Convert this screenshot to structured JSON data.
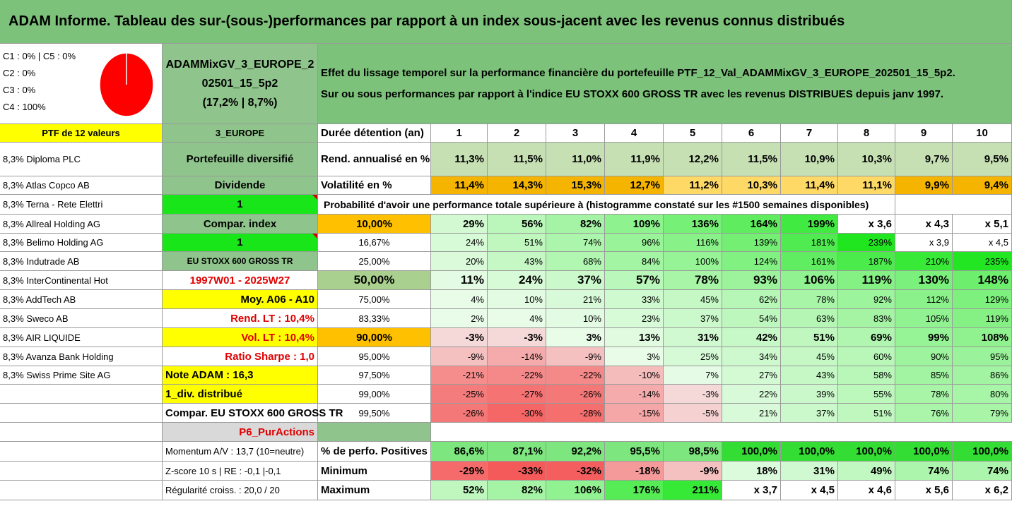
{
  "header": {
    "title": "ADAM Informe. Tableau des sur-(sous-)performances par rapport à un index sous-jacent avec les revenus connus distribués"
  },
  "classes": {
    "lines": [
      "C1 : 0% | C5 : 0%",
      "C2 : 0%",
      "C3 : 0%",
      "C4 : 100%"
    ],
    "pie_values": [
      0,
      0,
      0,
      100,
      0
    ],
    "pie_color": "#ff0000"
  },
  "portfolio_name": {
    "line1": "ADAMMixGV_3_EUROPE_2",
    "line2": "02501_15_5p2",
    "line3": "(17,2% | 8,7%)"
  },
  "description": {
    "line1": "Effet du lissage temporel sur la performance financière du portefeuille PTF_12_Val_ADAMMixGV_3_EUROPE_202501_15_5p2.",
    "line2": "Sur ou sous performances par rapport à l'indice EU STOXX 600 GROSS TR avec les revenus DISTRIBUES depuis janv 1997."
  },
  "holdings": {
    "header": "PTF de 12 valeurs",
    "items": [
      "8,3% Diploma PLC",
      "8,3% Atlas Copco AB",
      "8,3% Terna - Rete Elettri",
      "8,3% Allreal Holding AG",
      "8,3% Belimo Holding AG",
      "8,3% Indutrade AB",
      "8,3% InterContinental Hot",
      "8,3% AddTech AB",
      "8,3% Sweco AB",
      "8,3% AIR LIQUIDE",
      "8,3% Avanza Bank Holding",
      "8,3% Swiss Prime Site AG"
    ]
  },
  "info": {
    "zone": "3_EUROPE",
    "type": "Portefeuille diversifié",
    "dividend_label": "Dividende",
    "dividend_value": "1",
    "compar_label": "Compar. index",
    "compar_value": "1",
    "index_name": "EU STOXX 600 GROSS TR",
    "period": "1997W01 - 2025W27",
    "avg": "Moy. A06 - A10",
    "rend_lt": "Rend. LT : 10,4%",
    "vol_lt": "Vol. LT : 10,4%",
    "sharpe": "Ratio Sharpe : 1,0",
    "note": "Note ADAM : 16,3",
    "div_distrib": "1_div. distribué",
    "compar_full": "Compar. EU STOXX 600 GROSS TR",
    "purpose": "P6_PurActions",
    "momentum": "Momentum A/V : 13,7 (10=neutre)",
    "zscore": "Z-score 10 s | RE : -0,1 |-0,1",
    "regularity": "Régularité croiss. : 20,0 / 20"
  },
  "table": {
    "duration_label": "Durée détention (an)",
    "years": [
      "1",
      "2",
      "3",
      "4",
      "5",
      "6",
      "7",
      "8",
      "9",
      "10"
    ],
    "rend_label": "Rend. annualisé en %",
    "rend": [
      "11,3%",
      "11,5%",
      "11,0%",
      "11,9%",
      "12,2%",
      "11,5%",
      "10,9%",
      "10,3%",
      "9,7%",
      "9,5%"
    ],
    "vol_label": "Volatilité en %",
    "vol": [
      "11,4%",
      "14,3%",
      "15,3%",
      "12,7%",
      "11,2%",
      "10,3%",
      "11,4%",
      "11,1%",
      "9,9%",
      "9,4%"
    ],
    "prob_title": "Probabilité d'avoir une performance totale supérieure à (histogramme constaté sur les #1500 semaines disponibles)",
    "prob_rows": [
      {
        "p": "10,00%",
        "v": [
          "29%",
          "56%",
          "82%",
          "109%",
          "136%",
          "164%",
          "199%",
          "x 3,6",
          "x 4,3",
          "x 5,1"
        ]
      },
      {
        "p": "16,67%",
        "v": [
          "24%",
          "51%",
          "74%",
          "96%",
          "116%",
          "139%",
          "181%",
          "239%",
          "x 3,9",
          "x 4,5"
        ]
      },
      {
        "p": "25,00%",
        "v": [
          "20%",
          "43%",
          "68%",
          "84%",
          "100%",
          "124%",
          "161%",
          "187%",
          "210%",
          "235%"
        ]
      },
      {
        "p": "50,00%",
        "v": [
          "11%",
          "24%",
          "37%",
          "57%",
          "78%",
          "93%",
          "106%",
          "119%",
          "130%",
          "148%"
        ]
      },
      {
        "p": "75,00%",
        "v": [
          "4%",
          "10%",
          "21%",
          "33%",
          "45%",
          "62%",
          "78%",
          "92%",
          "112%",
          "129%"
        ]
      },
      {
        "p": "83,33%",
        "v": [
          "2%",
          "4%",
          "10%",
          "23%",
          "37%",
          "54%",
          "63%",
          "83%",
          "105%",
          "119%"
        ]
      },
      {
        "p": "90,00%",
        "v": [
          "-3%",
          "-3%",
          "3%",
          "13%",
          "31%",
          "42%",
          "51%",
          "69%",
          "99%",
          "108%"
        ]
      },
      {
        "p": "95,00%",
        "v": [
          "-9%",
          "-14%",
          "-9%",
          "3%",
          "25%",
          "34%",
          "45%",
          "60%",
          "90%",
          "95%"
        ]
      },
      {
        "p": "97,50%",
        "v": [
          "-21%",
          "-22%",
          "-22%",
          "-10%",
          "7%",
          "27%",
          "43%",
          "58%",
          "85%",
          "86%"
        ]
      },
      {
        "p": "99,00%",
        "v": [
          "-25%",
          "-27%",
          "-26%",
          "-14%",
          "-3%",
          "22%",
          "39%",
          "55%",
          "78%",
          "80%"
        ]
      },
      {
        "p": "99,50%",
        "v": [
          "-26%",
          "-30%",
          "-28%",
          "-15%",
          "-5%",
          "21%",
          "37%",
          "51%",
          "76%",
          "79%"
        ]
      }
    ],
    "pos_label": "% de perfo. Positives",
    "pos": [
      "86,6%",
      "87,1%",
      "92,2%",
      "95,5%",
      "98,5%",
      "100,0%",
      "100,0%",
      "100,0%",
      "100,0%",
      "100,0%"
    ],
    "min_label": "Minimum",
    "min": [
      "-29%",
      "-33%",
      "-32%",
      "-18%",
      "-9%",
      "18%",
      "31%",
      "49%",
      "74%",
      "74%"
    ],
    "max_label": "Maximum",
    "max": [
      "52%",
      "82%",
      "106%",
      "176%",
      "211%",
      "x 3,7",
      "x 4,5",
      "x 4,6",
      "x 5,6",
      "x 6,2"
    ]
  }
}
